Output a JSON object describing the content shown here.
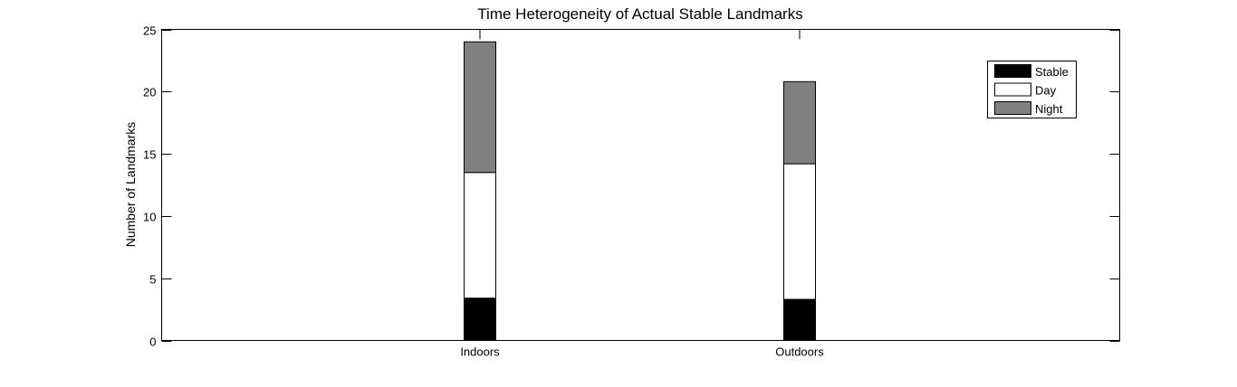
{
  "chart_data": {
    "type": "bar",
    "stacked": true,
    "title": "Time Heterogeneity of Actual Stable Landmarks",
    "xlabel": "",
    "ylabel": "Number of Landmarks",
    "categories": [
      "Indoors",
      "Outdoors"
    ],
    "ylim": [
      0,
      25
    ],
    "yticks": [
      0,
      5,
      10,
      15,
      20,
      25
    ],
    "series": [
      {
        "name": "Stable",
        "values": [
          3.4,
          3.3
        ],
        "color": "#000000"
      },
      {
        "name": "Day",
        "values": [
          10.1,
          10.9
        ],
        "color": "#ffffff"
      },
      {
        "name": "Night",
        "values": [
          10.5,
          6.6
        ],
        "color": "#808080"
      }
    ],
    "grid": false,
    "legend_position": "top-right"
  }
}
